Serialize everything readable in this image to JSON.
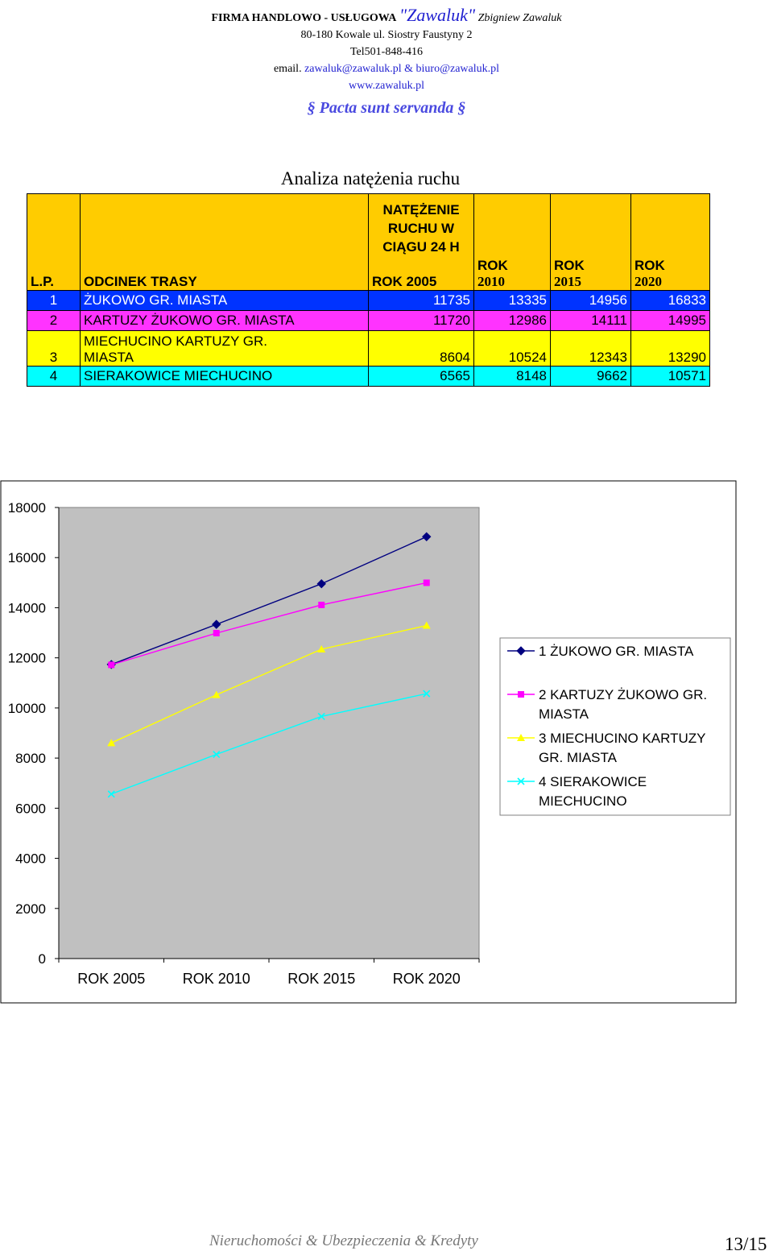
{
  "letterhead": {
    "company": "FIRMA HANDLOWO - USŁUGOWA",
    "brand": "\"Zawaluk\"",
    "owner": "Zbigniew Zawaluk",
    "address": "80-180 Kowale ul. Siostry Faustyny 2",
    "phone": "Tel501-848-416",
    "email_prefix": "email.",
    "email1": "zawaluk@zawaluk.pl",
    "email_sep": "&",
    "email2": "biuro@zawaluk.pl",
    "website": "www.zawaluk.pl",
    "motto": "Pacta sunt servanda",
    "section_mark": "§"
  },
  "table": {
    "title": "Analiza natężenia ruchu",
    "group_header": "NATĘŻENIE RUCHU W CIĄGU 24 H",
    "headers": [
      "L.P.",
      "ODCINEK TRASY",
      "ROK 2005",
      "ROK",
      "ROK",
      "ROK"
    ],
    "year_subheaders": [
      "2010",
      "2015",
      "2020"
    ],
    "rows": [
      {
        "lp": "1",
        "name": "ŻUKOWO GR. MIASTA",
        "v2005": "11735",
        "v2010": "13335",
        "v2015": "14956",
        "v2020": "16833"
      },
      {
        "lp": "2",
        "name": "KARTUZY ŻUKOWO GR. MIASTA",
        "v2005": "11720",
        "v2010": "12986",
        "v2015": "14111",
        "v2020": "14995"
      },
      {
        "lp": "3",
        "name_line1": "MIECHUCINO KARTUZY GR.",
        "name_line2": "MIASTA",
        "v2005": "8604",
        "v2010": "10524",
        "v2015": "12343",
        "v2020": "13290"
      },
      {
        "lp": "4",
        "name": "SIERAKOWICE MIECHUCINO",
        "v2005": "6565",
        "v2010": "8148",
        "v2015": "9662",
        "v2020": "10571"
      }
    ]
  },
  "chart_data": {
    "type": "line",
    "categories": [
      "ROK 2005",
      "ROK 2010",
      "ROK 2015",
      "ROK 2020"
    ],
    "ylim": [
      0,
      18000
    ],
    "yticks": [
      0,
      2000,
      4000,
      6000,
      8000,
      10000,
      12000,
      14000,
      16000,
      18000
    ],
    "legend_position": "right",
    "plot_background": "#c0c0c0",
    "series": [
      {
        "name": "1 ŻUKOWO GR. MIASTA",
        "legend_lines": [
          "1 ŻUKOWO GR. MIASTA"
        ],
        "color": "#000080",
        "marker": "diamond",
        "values": [
          11735,
          13335,
          14956,
          16833
        ]
      },
      {
        "name": "2 KARTUZY ŻUKOWO GR. MIASTA",
        "legend_lines": [
          "2 KARTUZY ŻUKOWO GR.",
          "MIASTA"
        ],
        "color": "#ff00ff",
        "marker": "square",
        "values": [
          11720,
          12986,
          14111,
          14995
        ]
      },
      {
        "name": "3 MIECHUCINO KARTUZY GR. MIASTA",
        "legend_lines": [
          "3 MIECHUCINO KARTUZY",
          "GR. MIASTA"
        ],
        "color": "#ffff00",
        "marker": "triangle",
        "values": [
          8604,
          10524,
          12343,
          13290
        ]
      },
      {
        "name": "4 SIERAKOWICE MIECHUCINO",
        "legend_lines": [
          "4 SIERAKOWICE",
          "MIECHUCINO"
        ],
        "color": "#00ffff",
        "marker": "x",
        "values": [
          6565,
          8148,
          9662,
          10571
        ]
      }
    ]
  },
  "footer": {
    "text": "Nieruchomości & Ubezpieczenia & Kredyty",
    "page": "13/15"
  }
}
